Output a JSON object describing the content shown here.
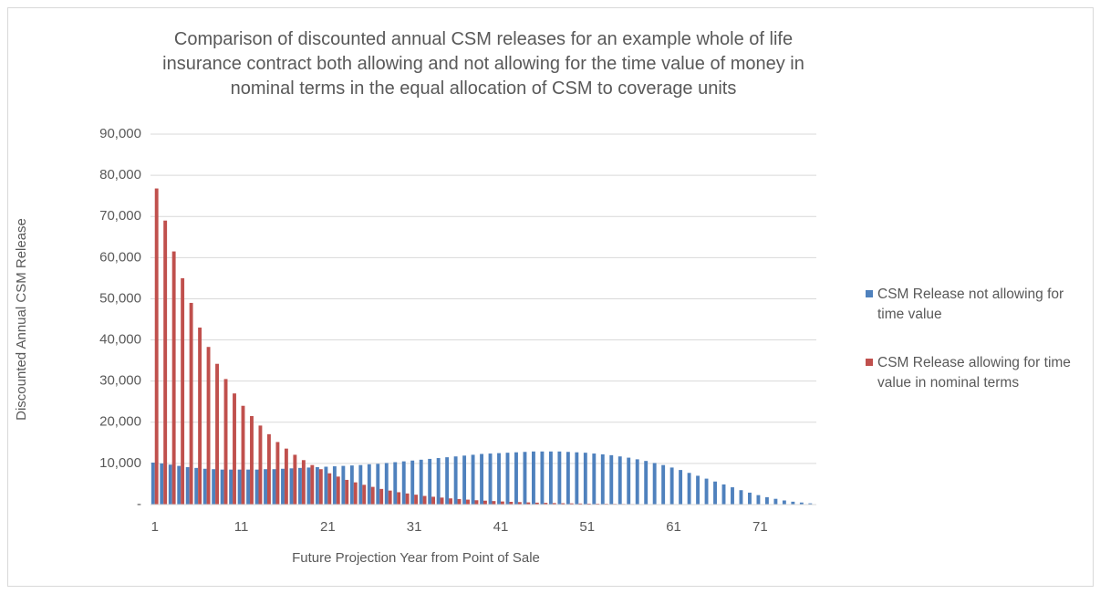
{
  "chart_data": {
    "type": "bar",
    "title": "Comparison of discounted annual CSM releases for an example whole of life insurance contract both allowing and not allowing for the time value of money in nominal terms in the equal allocation of CSM to coverage units",
    "x_label": "Future Projection Year from Point of Sale",
    "y_label": "Discounted Annual CSM Release",
    "categories": [
      "1",
      null,
      null,
      null,
      null,
      null,
      null,
      null,
      null,
      null,
      "11",
      null,
      null,
      null,
      null,
      null,
      null,
      null,
      null,
      null,
      "21",
      null,
      null,
      null,
      null,
      null,
      null,
      null,
      null,
      null,
      "31",
      null,
      null,
      null,
      null,
      null,
      null,
      null,
      null,
      null,
      "41",
      null,
      null,
      null,
      null,
      null,
      null,
      null,
      null,
      null,
      "51",
      null,
      null,
      null,
      null,
      null,
      null,
      null,
      null,
      null,
      "61",
      null,
      null,
      null,
      null,
      null,
      null,
      null,
      null,
      null,
      "71",
      null,
      null,
      null,
      null,
      null,
      null
    ],
    "series": [
      {
        "name": "CSM Release not allowing for time value",
        "color": "#4f81bd",
        "values": [
          10200,
          10000,
          9700,
          9400,
          9100,
          8900,
          8700,
          8600,
          8500,
          8500,
          8500,
          8500,
          8500,
          8600,
          8600,
          8700,
          8800,
          8900,
          9000,
          9100,
          9200,
          9300,
          9400,
          9500,
          9600,
          9800,
          9900,
          10100,
          10300,
          10500,
          10700,
          10900,
          11100,
          11300,
          11500,
          11700,
          11900,
          12100,
          12300,
          12400,
          12500,
          12600,
          12700,
          12800,
          12900,
          12900,
          12900,
          12900,
          12800,
          12700,
          12600,
          12400,
          12200,
          12000,
          11700,
          11400,
          11000,
          10600,
          10100,
          9600,
          9000,
          8400,
          7700,
          7000,
          6300,
          5600,
          4900,
          4200,
          3500,
          2900,
          2300,
          1800,
          1400,
          1000,
          700,
          500,
          300
        ]
      },
      {
        "name": "CSM Release allowing for time value in nominal terms",
        "color": "#c0504d",
        "values": [
          76800,
          69000,
          61500,
          55000,
          49000,
          43000,
          38300,
          34200,
          30500,
          27000,
          24000,
          21500,
          19200,
          17100,
          15200,
          13600,
          12100,
          10800,
          9600,
          8600,
          7600,
          6800,
          6000,
          5400,
          4800,
          4300,
          3800,
          3400,
          3000,
          2700,
          2400,
          2100,
          1900,
          1700,
          1500,
          1350,
          1200,
          1050,
          950,
          850,
          750,
          670,
          600,
          530,
          470,
          420,
          370,
          330,
          300,
          260,
          230,
          210,
          190,
          170,
          150,
          130,
          115,
          100,
          90,
          80,
          70,
          60,
          55,
          50,
          45,
          40,
          35,
          30,
          27,
          24,
          21,
          19,
          17,
          15,
          13,
          12,
          11
        ]
      }
    ],
    "ylim": [
      0,
      90000
    ],
    "yticks": [
      {
        "value": 0,
        "label": "-"
      },
      {
        "value": 10000,
        "label": "10,000"
      },
      {
        "value": 20000,
        "label": "20,000"
      },
      {
        "value": 30000,
        "label": "30,000"
      },
      {
        "value": 40000,
        "label": "40,000"
      },
      {
        "value": 50000,
        "label": "50,000"
      },
      {
        "value": 60000,
        "label": "60,000"
      },
      {
        "value": 70000,
        "label": "70,000"
      },
      {
        "value": 80000,
        "label": "80,000"
      },
      {
        "value": 90000,
        "label": "90,000"
      }
    ],
    "grid": true,
    "legend": "right"
  }
}
